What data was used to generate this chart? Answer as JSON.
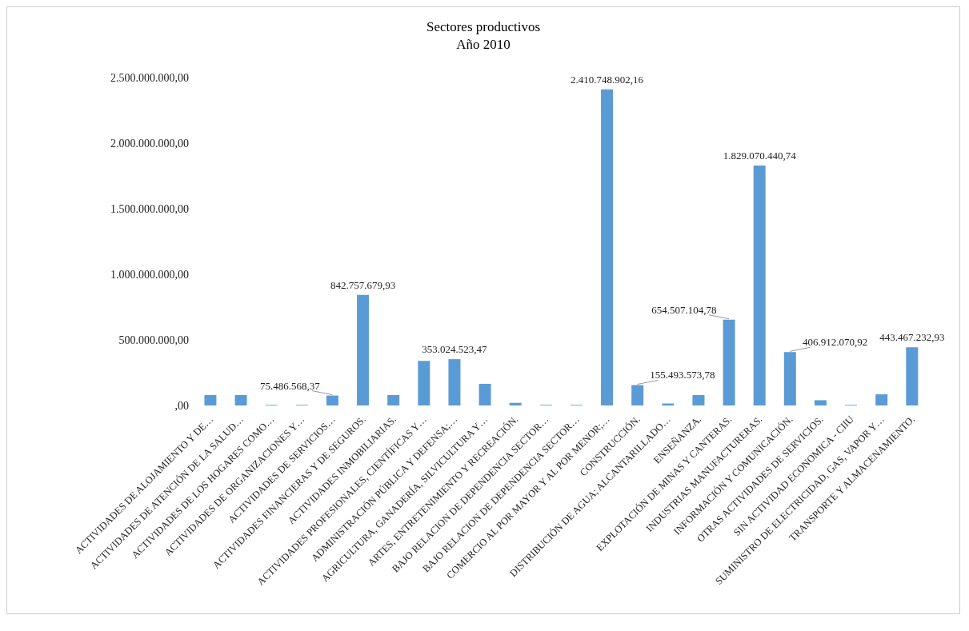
{
  "chart_data": {
    "type": "bar",
    "title": "Sectores productivos",
    "subtitle": "Año 2010",
    "categories": [
      "ACTIVIDADES DE ALOJAMIENTO Y DE…",
      "ACTIVIDADES DE ATENCIÓN DE LA SALUD…",
      "ACTIVIDADES DE LOS HOGARES COMO…",
      "ACTIVIDADES DE ORGANIZACIONES Y…",
      "ACTIVIDADES DE SERVICIOS…",
      "ACTIVIDADES FINANCIERAS Y DE SEGUROS.",
      "ACTIVIDADES INMOBILIARIAS.",
      "ACTIVIDADES PROFESIONALES, CIENTÍFICAS Y…",
      "ADMINISTRACIÓN PÚBLICA Y DEFENSA;…",
      "AGRICULTURA, GANADERÍA,  SILVICULTURA Y…",
      "ARTES, ENTRETENIMIENTO Y RECREACIÓN.",
      "BAJO RELACION DE DEPENDENCIA SECTOR…",
      "BAJO RELACION DE DEPENDENCIA SECTOR…",
      "COMERCIO AL POR MAYOR Y AL POR MENOR;…",
      "CONSTRUCCIÓN.",
      "DISTRIBUCIÓN DE AGUA; ALCANTARILLADO…",
      "ENSEÑANZA.",
      "EXPLOTACIÓN DE MINAS Y CANTERAS.",
      "INDUSTRIAS MANUFACTURERAS.",
      "INFORMACIÓN Y COMUNICACIÓN.",
      "OTRAS ACTIVIDADES DE SERVICIOS.",
      "SIN ACTIVIDAD ECONOMICA - CIIU",
      "SUMINISTRO DE ELECTRICIDAD, GAS, VAPOR Y…",
      "TRANSPORTE Y ALMACENAMIENTO."
    ],
    "values": [
      80000000,
      80000000,
      5000000,
      5000000,
      75486568.37,
      842757679.93,
      80000000,
      340000000,
      353024523.47,
      165000000,
      20000000,
      5000000,
      5000000,
      2410748902.16,
      155493573.78,
      15000000,
      80000000,
      654507104.78,
      1829070440.74,
      406912070.92,
      40000000,
      5000000,
      85000000,
      443467232.93
    ],
    "value_labels": [
      null,
      null,
      null,
      null,
      "75.486.568,37",
      "842.757.679,93",
      null,
      null,
      "353.024.523,47",
      null,
      null,
      null,
      null,
      "2.410.748.902,16",
      "155.493.573,78",
      null,
      null,
      "654.507.104,78",
      "1.829.070.440,74",
      "406.912.070,92",
      null,
      null,
      null,
      "443.467.232,93"
    ],
    "color": "#5b9bd5",
    "ylim": [
      0,
      2500000000
    ],
    "yticks": [
      {
        "value": 0,
        "label": ",00"
      },
      {
        "value": 500000000,
        "label": "500.000.000,00"
      },
      {
        "value": 1000000000,
        "label": "1.000.000.000,00"
      },
      {
        "value": 1500000000,
        "label": "1.500.000.000,00"
      },
      {
        "value": 2000000000,
        "label": "2.000.000.000,00"
      },
      {
        "value": 2500000000,
        "label": "2.500.000.000,00"
      }
    ]
  }
}
